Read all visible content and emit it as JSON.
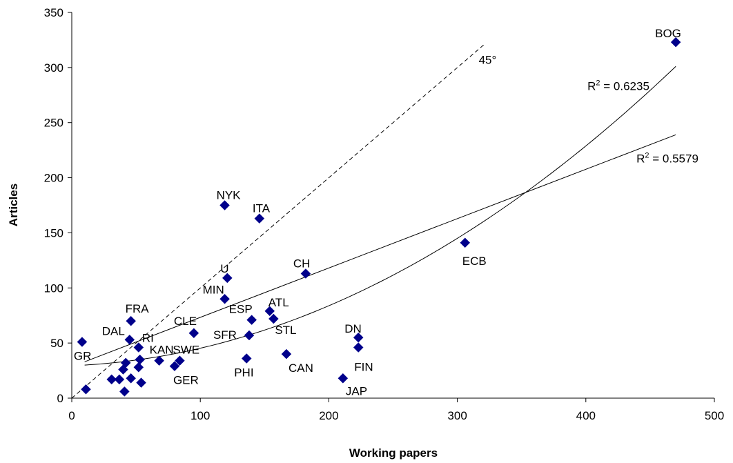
{
  "chart_data": {
    "type": "scatter",
    "title": "",
    "xlabel": "Working papers",
    "ylabel": "Articles",
    "xlim": [
      0,
      500
    ],
    "ylim": [
      0,
      350
    ],
    "xticks": [
      0,
      100,
      200,
      300,
      400,
      500
    ],
    "yticks": [
      0,
      50,
      100,
      150,
      200,
      250,
      300,
      350
    ],
    "grid": false,
    "marker_color": "#00008B",
    "points": [
      {
        "label": "BOG",
        "x": 470,
        "y": 323
      },
      {
        "label": "ECB",
        "x": 306,
        "y": 141
      },
      {
        "label": "NYK",
        "x": 119,
        "y": 175
      },
      {
        "label": "ITA",
        "x": 146,
        "y": 163
      },
      {
        "label": "CH",
        "x": 182,
        "y": 113
      },
      {
        "label": "U",
        "x": 121,
        "y": 109
      },
      {
        "label": "MIN",
        "x": 119,
        "y": 90
      },
      {
        "label": "ATL",
        "x": 154,
        "y": 79
      },
      {
        "label": "ESP",
        "x": 140,
        "y": 71
      },
      {
        "label": "STL",
        "x": 157,
        "y": 72
      },
      {
        "label": "FRA",
        "x": 46,
        "y": 70
      },
      {
        "label": "CLE",
        "x": 95,
        "y": 59
      },
      {
        "label": "SFR",
        "x": 138,
        "y": 57
      },
      {
        "label": "DN",
        "x": 223,
        "y": 55
      },
      {
        "label": "FIN",
        "x": 223,
        "y": 46
      },
      {
        "label": "DAL",
        "x": 45,
        "y": 53
      },
      {
        "label": "GR",
        "x": 8,
        "y": 51
      },
      {
        "label": "RI",
        "x": 52,
        "y": 46
      },
      {
        "label": "CAN",
        "x": 167,
        "y": 40
      },
      {
        "label": "PHI",
        "x": 136,
        "y": 36
      },
      {
        "label": "KAN",
        "x": 68,
        "y": 34
      },
      {
        "label": "SWE",
        "x": 84,
        "y": 34
      },
      {
        "label": "GER",
        "x": 80,
        "y": 29
      },
      {
        "label": "JAP",
        "x": 211,
        "y": 18
      },
      {
        "label": "",
        "x": 11,
        "y": 8
      },
      {
        "label": "",
        "x": 31,
        "y": 17
      },
      {
        "label": "",
        "x": 37,
        "y": 17
      },
      {
        "label": "",
        "x": 40,
        "y": 26
      },
      {
        "label": "",
        "x": 42,
        "y": 32
      },
      {
        "label": "",
        "x": 41,
        "y": 6
      },
      {
        "label": "",
        "x": 46,
        "y": 18
      },
      {
        "label": "",
        "x": 53,
        "y": 35
      },
      {
        "label": "",
        "x": 52,
        "y": 28
      },
      {
        "label": "",
        "x": 54,
        "y": 14
      }
    ],
    "reference_line": {
      "label": "45°",
      "style": "dashed",
      "x": [
        0,
        322
      ],
      "y": [
        0,
        322
      ]
    },
    "trendlines": [
      {
        "type": "linear",
        "r2_label": "R2 = 0.5579",
        "r2_value": "0.5579",
        "x": [
          10,
          470
        ],
        "y": [
          33,
          239
        ]
      },
      {
        "type": "quadratic",
        "r2_label": "R2 = 0.6235",
        "r2_value": "0.6235",
        "x": [
          10,
          100,
          200,
          300,
          400,
          470
        ],
        "y": [
          30,
          50,
          89,
          145,
          220,
          301
        ]
      }
    ]
  }
}
